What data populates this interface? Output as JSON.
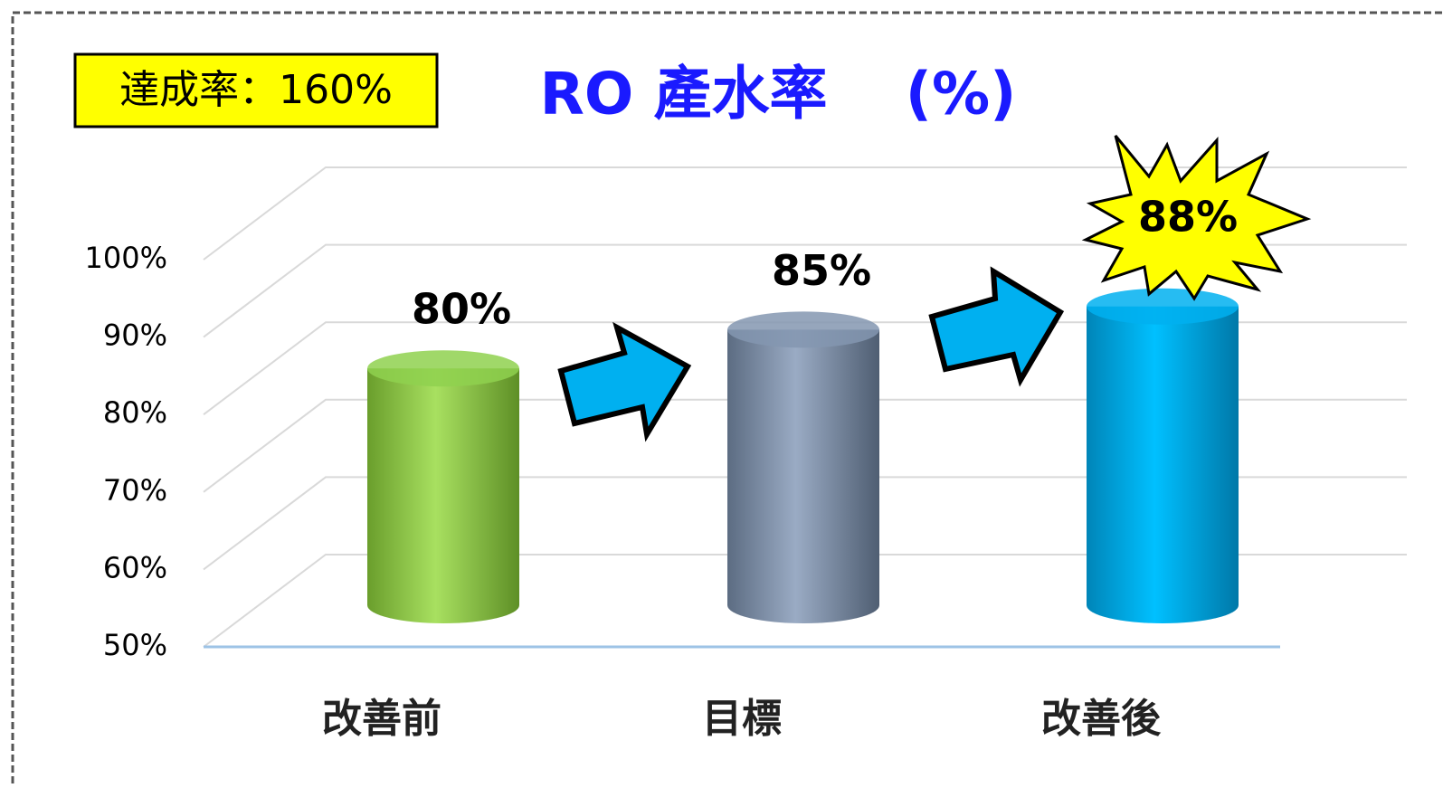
{
  "chart_data": {
    "type": "bar3d",
    "title": "RO 產水率　 (%)",
    "annotation": "達成率：160%",
    "categories": [
      "改善前",
      "目標",
      "改善後"
    ],
    "values": [
      80,
      85,
      88
    ],
    "value_labels": [
      "80%",
      "85%",
      "88%"
    ],
    "colors": [
      "#8fd14f",
      "#8497b0",
      "#00b0f0"
    ],
    "ylim": [
      50,
      100
    ],
    "yticks": [
      {
        "value": 50,
        "label": "50%"
      },
      {
        "value": 60,
        "label": "60%"
      },
      {
        "value": 70,
        "label": "70%"
      },
      {
        "value": 80,
        "label": "80%"
      },
      {
        "value": 90,
        "label": "90%"
      },
      {
        "value": 100,
        "label": "100%"
      }
    ],
    "grid": true
  }
}
